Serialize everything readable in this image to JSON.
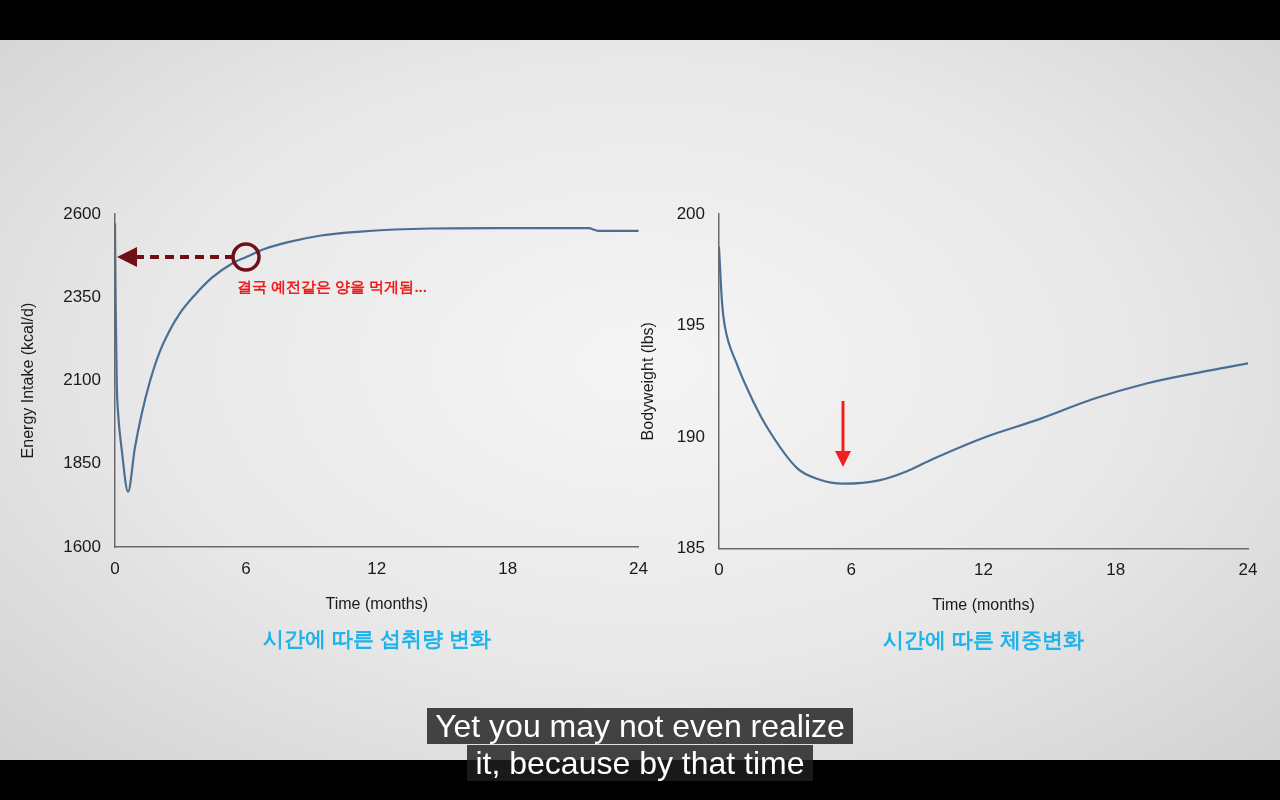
{
  "chart_data": [
    {
      "type": "line",
      "title": "시간에 따른 섭취량 변화",
      "xlabel": "Time (months)",
      "ylabel": "Energy Intake (kcal/d)",
      "x": [
        0,
        0.03,
        0.08,
        0.15,
        0.3,
        0.6,
        0.91,
        1.21,
        1.59,
        2.04,
        2.5,
        2.95,
        3.63,
        4.46,
        5.37,
        6,
        6.88,
        7.94,
        9.45,
        11.1,
        14.44,
        17.47,
        21.7,
        22.16,
        24
      ],
      "series": [
        {
          "color": "#4b6f93",
          "values": [
            2570,
            2330,
            2095,
            1996,
            1897,
            1766,
            1897,
            1996,
            2095,
            2185,
            2250,
            2300,
            2355,
            2410,
            2452,
            2471,
            2496,
            2516,
            2536,
            2547,
            2557,
            2558,
            2558,
            2550,
            2550
          ]
        }
      ],
      "xlim": [
        0,
        24
      ],
      "xticks": [
        0,
        6,
        12,
        18,
        24
      ],
      "ylim": [
        1600,
        2600
      ],
      "yticks": [
        1600,
        1850,
        2100,
        2350,
        2600
      ],
      "grid": false,
      "legend": false,
      "marker": "none",
      "annotations": [
        {
          "text": "결국 예전같은 양을 먹게됨...",
          "x": 6,
          "y": 2471
        },
        "Yet you may not even realize it, because by that time"
      ]
    },
    {
      "type": "line",
      "title": "시간에 따른 체중변화",
      "xlabel": "Time (months)",
      "ylabel": "Bodyweight (lbs)",
      "x": [
        0,
        0.14,
        0.26,
        0.8,
        1.6,
        2.2,
        3.54,
        4.51,
        5.64,
        7.26,
        8.5,
        9.68,
        12.1,
        14.54,
        16.97,
        19.39,
        21.81,
        24
      ],
      "series": [
        {
          "color": "#4b6f93",
          "values": [
            198.5,
            196.0,
            195.0,
            193.3,
            191.5,
            190.4,
            188.6,
            188.1,
            187.9,
            188.05,
            188.45,
            189.0,
            190.0,
            190.8,
            191.7,
            192.4,
            192.9,
            193.3
          ]
        }
      ],
      "xlim": [
        0,
        24
      ],
      "xticks": [
        0,
        6,
        12,
        18,
        24
      ],
      "ylim": [
        185,
        200
      ],
      "yticks": [
        185,
        190,
        195,
        200
      ],
      "grid": false,
      "legend": false,
      "marker": "none"
    }
  ]
}
